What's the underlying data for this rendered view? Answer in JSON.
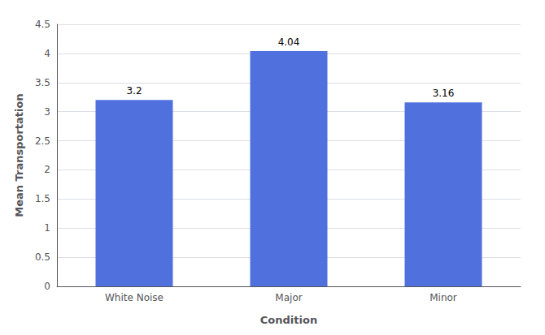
{
  "chart_data": {
    "type": "bar",
    "categories": [
      "White Noise",
      "Major",
      "Minor"
    ],
    "values": [
      3.2,
      4.04,
      3.16
    ],
    "xlabel": "Condition",
    "ylabel": "Mean Transportation",
    "ylim": [
      0,
      4.5
    ],
    "yticks": [
      0,
      0.5,
      1.0,
      1.5,
      2.0,
      2.5,
      3.0,
      3.5,
      4.0,
      4.5
    ],
    "grid": true,
    "data_labels": true
  }
}
